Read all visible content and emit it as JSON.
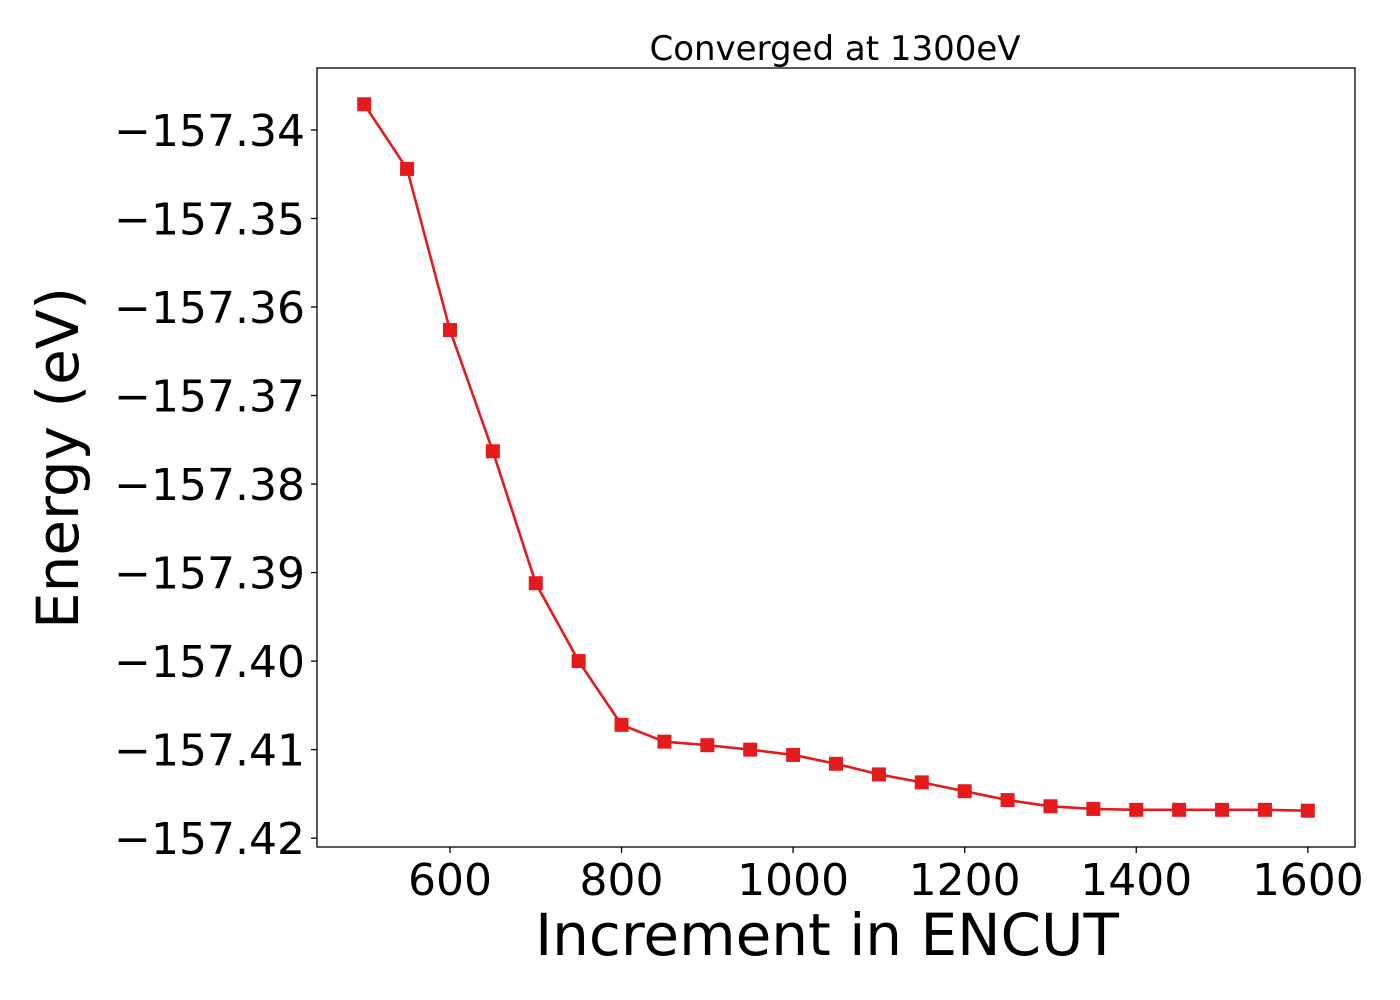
{
  "chart_data": {
    "type": "line",
    "title": "Converged at 1300eV",
    "xlabel": "Increment in ENCUT",
    "ylabel": "Energy (eV)",
    "xlim": [
      445,
      1655
    ],
    "ylim": [
      -157.421,
      -157.333
    ],
    "xticks": [
      600,
      800,
      1000,
      1200,
      1400,
      1600
    ],
    "xtick_labels": [
      "600",
      "800",
      "1000",
      "1200",
      "1400",
      "1600"
    ],
    "yticks": [
      -157.34,
      -157.35,
      -157.36,
      -157.37,
      -157.38,
      -157.39,
      -157.4,
      -157.41,
      -157.42
    ],
    "ytick_labels": [
      "−157.34",
      "−157.35",
      "−157.36",
      "−157.37",
      "−157.38",
      "−157.39",
      "−157.40",
      "−157.41",
      "−157.42"
    ],
    "grid": false,
    "legend": "none",
    "series": [
      {
        "color": "#e41a1c",
        "marker": "square",
        "x": [
          500,
          550,
          600,
          650,
          700,
          750,
          800,
          850,
          900,
          950,
          1000,
          1050,
          1100,
          1150,
          1200,
          1250,
          1300,
          1350,
          1400,
          1450,
          1500,
          1550,
          1600
        ],
        "y": [
          -157.3371,
          -157.3444,
          -157.3626,
          -157.3763,
          -157.3912,
          -157.4,
          -157.4072,
          -157.4091,
          -157.4095,
          -157.41,
          -157.4106,
          -157.4116,
          -157.4128,
          -157.4137,
          -157.4147,
          -157.4157,
          -157.4164,
          -157.4167,
          -157.4168,
          -157.4168,
          -157.4168,
          -157.4168,
          -157.4169
        ]
      }
    ]
  }
}
